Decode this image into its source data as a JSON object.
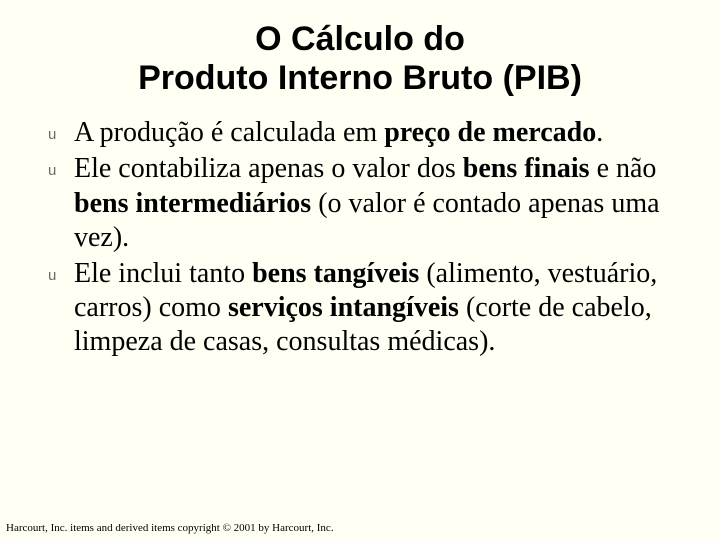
{
  "background_color": "#fffff4",
  "title": {
    "line1": "O Cálculo do",
    "line2": "Produto Interno Bruto (PIB)",
    "font_family": "Arial",
    "font_size_pt": 34,
    "font_weight": "bold",
    "color": "#000000"
  },
  "bullet": {
    "glyph": "u",
    "color": "#6a6a6a",
    "font_family": "Arial",
    "font_size_pt": 15
  },
  "body_text": {
    "font_family": "Times New Roman",
    "font_size_pt": 28,
    "color": "#000000"
  },
  "items": [
    {
      "runs": [
        {
          "t": "A produção é calculada em ",
          "b": false
        },
        {
          "t": "preço de mercado",
          "b": true
        },
        {
          "t": ".",
          "b": false
        }
      ]
    },
    {
      "runs": [
        {
          "t": "Ele contabiliza apenas o valor dos ",
          "b": false
        },
        {
          "t": "bens finais",
          "b": true
        },
        {
          "t": " e não ",
          "b": false
        },
        {
          "t": "bens intermediários",
          "b": true
        },
        {
          "t": " (o valor é contado apenas uma vez).",
          "b": false
        }
      ]
    },
    {
      "runs": [
        {
          "t": "Ele inclui tanto ",
          "b": false
        },
        {
          "t": "bens tangíveis",
          "b": true
        },
        {
          "t": " (alimento, vestuário, carros) como ",
          "b": false
        },
        {
          "t": "serviços intangíveis",
          "b": true
        },
        {
          "t": " (corte de cabelo, limpeza de casas, consultas médicas).",
          "b": false
        }
      ]
    }
  ],
  "footer": "Harcourt, Inc. items and derived items copyright © 2001 by Harcourt, Inc."
}
